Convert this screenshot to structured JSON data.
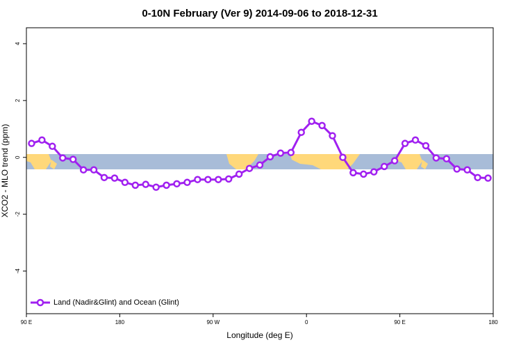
{
  "chart_data": {
    "type": "line",
    "title": "0-10N February (Ver 9)   2014-09-06 to 2018-12-31",
    "x_label": "Longitude (deg E)",
    "y_label": "XCO2 - MLO trend (ppm)",
    "xlim": [
      90,
      540
    ],
    "ylim": [
      -5.5,
      4.56
    ],
    "xticks": [
      {
        "value": 90,
        "label": "90 E"
      },
      180,
      {
        "value": 270,
        "label": "90 W"
      },
      {
        "value": 360,
        "label": "0"
      },
      {
        "value": 450,
        "label": "90 E"
      },
      {
        "value": 540,
        "label": "180"
      }
    ],
    "yticks": [
      -4,
      -2,
      0,
      2,
      4
    ],
    "legend": "bottom-left",
    "x": [
      95,
      105,
      115,
      125,
      135,
      145,
      155,
      165,
      175,
      185,
      195,
      205,
      215,
      225,
      235,
      245,
      255,
      265,
      275,
      285,
      295,
      305,
      315,
      325,
      335,
      345,
      355,
      365,
      375,
      385,
      395,
      405,
      415,
      425,
      435,
      445,
      455,
      465,
      475,
      485,
      495,
      505,
      515,
      525,
      535
    ],
    "series": [
      {
        "name": "Land (Nadir&Glint) and Ocean (Glint)",
        "color": "#a020f0",
        "values": [
          0.49,
          0.61,
          0.39,
          -0.02,
          -0.07,
          -0.44,
          -0.44,
          -0.71,
          -0.73,
          -0.88,
          -0.98,
          -0.95,
          -1.05,
          -0.98,
          -0.93,
          -0.88,
          -0.78,
          -0.78,
          -0.78,
          -0.76,
          -0.59,
          -0.39,
          -0.27,
          0.02,
          0.15,
          0.17,
          0.88,
          1.27,
          1.12,
          0.76,
          0.0,
          -0.54,
          -0.59,
          -0.51,
          -0.32,
          -0.12,
          0.49,
          0.61,
          0.41,
          -0.02,
          -0.05,
          -0.41,
          -0.44,
          -0.71,
          -0.73
        ]
      }
    ]
  }
}
